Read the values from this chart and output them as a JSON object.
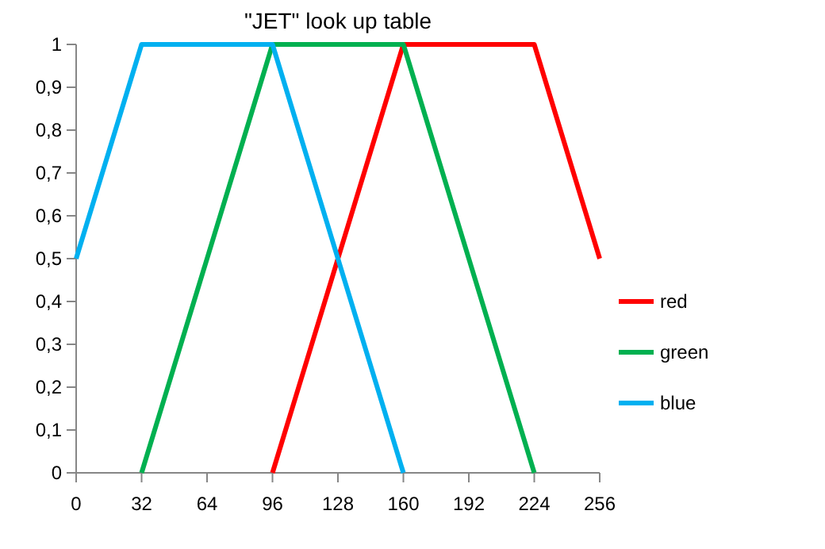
{
  "chart_data": {
    "type": "line",
    "title": "\"JET\" look up table",
    "xlim": [
      0,
      256
    ],
    "xticks": [
      0,
      32,
      64,
      96,
      128,
      160,
      192,
      224,
      256
    ],
    "ylim": [
      0,
      1
    ],
    "yticks": [
      0,
      {
        "value": 0.1,
        "label": "0,1"
      },
      {
        "value": 0.2,
        "label": "0,2"
      },
      {
        "value": 0.3,
        "label": "0,3"
      },
      {
        "value": 0.4,
        "label": "0,4"
      },
      {
        "value": 0.5,
        "label": "0,5"
      },
      {
        "value": 0.6,
        "label": "0,6"
      },
      {
        "value": 0.7,
        "label": "0,7"
      },
      {
        "value": 0.8,
        "label": "0,8"
      },
      {
        "value": 0.9,
        "label": "0,9"
      },
      1
    ],
    "grid": false,
    "legend": "right",
    "marker": "none",
    "line_style": "solid",
    "series": [
      {
        "name": "red",
        "color": "#ff0000",
        "x": [
          96,
          160,
          224,
          256
        ],
        "values": [
          0,
          1,
          1,
          0.5
        ]
      },
      {
        "name": "green",
        "color": "#00b050",
        "x": [
          32,
          96,
          160,
          224
        ],
        "values": [
          0,
          1,
          1,
          0
        ]
      },
      {
        "name": "blue",
        "color": "#00b0f0",
        "x": [
          0,
          32,
          96,
          160
        ],
        "values": [
          0.5,
          1,
          1,
          0
        ]
      }
    ]
  }
}
